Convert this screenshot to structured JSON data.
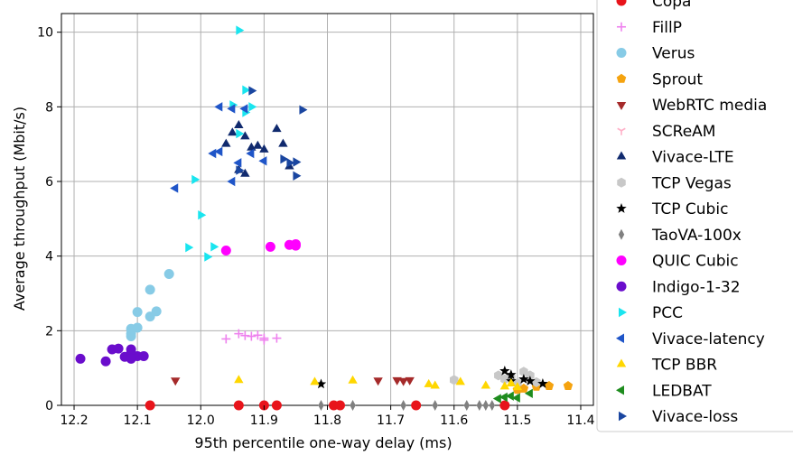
{
  "chart_data": {
    "type": "scatter",
    "title": "",
    "xlabel": "95th percentile one-way delay (ms)",
    "ylabel": "Average throughput (Mbit/s)",
    "xlim": [
      12.22,
      11.38
    ],
    "ylim": [
      0,
      10.5
    ],
    "x_inverted": true,
    "xticks": [
      "12.2",
      "12.1",
      "12.0",
      "11.9",
      "11.8",
      "11.7",
      "11.6",
      "11.5",
      "11.4"
    ],
    "xtick_values": [
      12.2,
      12.1,
      12.0,
      11.9,
      11.8,
      11.7,
      11.6,
      11.5,
      11.4
    ],
    "yticks": [
      "0",
      "2",
      "4",
      "6",
      "8",
      "10"
    ],
    "ytick_values": [
      0,
      2,
      4,
      6,
      8,
      10
    ],
    "grid": true,
    "legend_position": "right-outside",
    "series": [
      {
        "name": "Copa",
        "marker": "circle",
        "color": "#e8141b",
        "points": [
          [
            12.08,
            0
          ],
          [
            11.94,
            0
          ],
          [
            11.9,
            0
          ],
          [
            11.88,
            0
          ],
          [
            11.79,
            0
          ],
          [
            11.78,
            0
          ],
          [
            11.66,
            0
          ],
          [
            11.52,
            0
          ]
        ]
      },
      {
        "name": "FillP",
        "marker": "plus",
        "color": "#ee82ee",
        "points": [
          [
            11.96,
            1.78
          ],
          [
            11.94,
            1.92
          ],
          [
            11.92,
            1.85
          ],
          [
            11.91,
            1.88
          ],
          [
            11.9,
            1.8
          ],
          [
            11.93,
            1.87
          ],
          [
            11.88,
            1.8
          ],
          [
            11.9,
            1.75
          ]
        ]
      },
      {
        "name": "Verus",
        "marker": "circle",
        "color": "#87cbe6",
        "points": [
          [
            12.11,
            1.92
          ],
          [
            12.11,
            2.05
          ],
          [
            12.1,
            2.08
          ],
          [
            12.1,
            2.5
          ],
          [
            12.08,
            3.1
          ],
          [
            12.08,
            2.38
          ],
          [
            12.07,
            2.52
          ],
          [
            12.05,
            3.52
          ],
          [
            12.11,
            1.85
          ]
        ]
      },
      {
        "name": "Sprout",
        "marker": "pentagon",
        "color": "#f5a30f",
        "points": [
          [
            11.49,
            0.45
          ],
          [
            11.47,
            0.5
          ],
          [
            11.45,
            0.52
          ],
          [
            11.42,
            0.52
          ],
          [
            11.5,
            0.42
          ]
        ]
      },
      {
        "name": "WebRTC media",
        "marker": "triangle-down",
        "color": "#a52a2a",
        "points": [
          [
            12.04,
            0.67
          ],
          [
            11.72,
            0.67
          ],
          [
            11.69,
            0.68
          ],
          [
            11.68,
            0.66
          ],
          [
            11.67,
            0.68
          ]
        ]
      },
      {
        "name": "SCReAM",
        "marker": "tri-down",
        "color": "#ffb0c8",
        "points": []
      },
      {
        "name": "Vivace-LTE",
        "marker": "triangle-up",
        "color": "#102a6e",
        "points": [
          [
            11.96,
            7.0
          ],
          [
            11.94,
            7.5
          ],
          [
            11.93,
            7.2
          ],
          [
            11.92,
            6.9
          ],
          [
            11.9,
            6.85
          ],
          [
            11.88,
            7.4
          ],
          [
            11.87,
            7.0
          ],
          [
            11.86,
            6.4
          ],
          [
            11.94,
            6.3
          ],
          [
            11.93,
            6.2
          ],
          [
            11.95,
            7.3
          ],
          [
            11.91,
            6.95
          ]
        ]
      },
      {
        "name": "TCP Vegas",
        "marker": "hexagon",
        "color": "#c8c8c8",
        "points": [
          [
            11.6,
            0.68
          ],
          [
            11.53,
            0.8
          ],
          [
            11.51,
            0.75
          ],
          [
            11.49,
            0.9
          ],
          [
            11.48,
            0.8
          ],
          [
            11.47,
            0.62
          ],
          [
            11.5,
            0.6
          ],
          [
            11.52,
            0.7
          ]
        ]
      },
      {
        "name": "TCP Cubic",
        "marker": "star",
        "color": "#000000",
        "points": [
          [
            11.81,
            0.57
          ],
          [
            11.52,
            0.92
          ],
          [
            11.51,
            0.82
          ],
          [
            11.49,
            0.7
          ],
          [
            11.48,
            0.65
          ],
          [
            11.46,
            0.58
          ],
          [
            11.51,
            0.65
          ]
        ]
      },
      {
        "name": "TaoVA-100x",
        "marker": "diamond-thin",
        "color": "#808080",
        "points": [
          [
            11.81,
            0
          ],
          [
            11.76,
            0
          ],
          [
            11.68,
            0
          ],
          [
            11.63,
            0
          ],
          [
            11.58,
            0
          ],
          [
            11.56,
            0
          ],
          [
            11.55,
            0
          ],
          [
            11.54,
            0
          ]
        ]
      },
      {
        "name": "QUIC Cubic",
        "marker": "circle",
        "color": "#ff00ff",
        "points": [
          [
            11.96,
            4.15
          ],
          [
            11.89,
            4.25
          ],
          [
            11.86,
            4.3
          ],
          [
            11.85,
            4.28
          ],
          [
            11.85,
            4.32
          ]
        ]
      },
      {
        "name": "Indigo-1-32",
        "marker": "circle",
        "color": "#6a0dcc",
        "points": [
          [
            12.19,
            1.25
          ],
          [
            12.15,
            1.18
          ],
          [
            12.14,
            1.5
          ],
          [
            12.13,
            1.52
          ],
          [
            12.12,
            1.3
          ],
          [
            12.11,
            1.5
          ],
          [
            12.1,
            1.32
          ],
          [
            12.11,
            1.4
          ],
          [
            12.09,
            1.32
          ],
          [
            12.11,
            1.25
          ]
        ]
      },
      {
        "name": "PCC",
        "marker": "triangle-right",
        "color": "#1ae5ef",
        "points": [
          [
            11.94,
            10.05
          ],
          [
            11.93,
            8.45
          ],
          [
            11.92,
            8.0
          ],
          [
            11.93,
            7.85
          ],
          [
            11.95,
            8.05
          ],
          [
            12.01,
            6.05
          ],
          [
            12.0,
            5.1
          ],
          [
            12.02,
            4.23
          ],
          [
            11.98,
            4.25
          ],
          [
            11.99,
            3.98
          ],
          [
            11.94,
            7.28
          ]
        ]
      },
      {
        "name": "Vivace-latency",
        "marker": "triangle-left",
        "color": "#1f55c8",
        "points": [
          [
            11.97,
            8.0
          ],
          [
            11.95,
            7.95
          ],
          [
            12.04,
            5.82
          ],
          [
            11.98,
            6.75
          ],
          [
            11.97,
            6.8
          ],
          [
            11.95,
            6.0
          ],
          [
            11.94,
            6.5
          ],
          [
            11.93,
            7.95
          ],
          [
            11.92,
            6.75
          ],
          [
            11.9,
            6.55
          ]
        ]
      },
      {
        "name": "TCP BBR",
        "marker": "triangle-up",
        "color": "#ffd700",
        "points": [
          [
            11.94,
            0.67
          ],
          [
            11.82,
            0.62
          ],
          [
            11.76,
            0.66
          ],
          [
            11.64,
            0.56
          ],
          [
            11.63,
            0.52
          ],
          [
            11.59,
            0.62
          ],
          [
            11.55,
            0.52
          ],
          [
            11.52,
            0.5
          ],
          [
            11.51,
            0.58
          ],
          [
            11.5,
            0.48
          ]
        ]
      },
      {
        "name": "LEDBAT",
        "marker": "triangle-left",
        "color": "#1e8c1e",
        "points": [
          [
            11.53,
            0.18
          ],
          [
            11.52,
            0.22
          ],
          [
            11.51,
            0.25
          ],
          [
            11.5,
            0.2
          ],
          [
            11.48,
            0.32
          ]
        ]
      },
      {
        "name": "Vivace-loss",
        "marker": "triangle-right",
        "color": "#1a46a0",
        "points": [
          [
            11.92,
            8.43
          ],
          [
            11.84,
            7.92
          ],
          [
            11.86,
            6.5
          ],
          [
            11.85,
            6.52
          ],
          [
            11.85,
            6.15
          ],
          [
            11.87,
            6.6
          ],
          [
            11.94,
            6.3
          ]
        ]
      }
    ]
  }
}
